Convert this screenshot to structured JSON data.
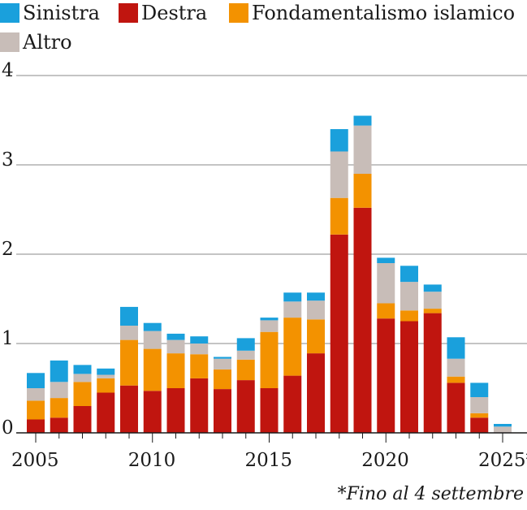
{
  "chart_data": {
    "type": "bar",
    "stacked": true,
    "categories": [
      "2005",
      "2006",
      "2007",
      "2008",
      "2009",
      "2010",
      "2011",
      "2012",
      "2013",
      "2014",
      "2015",
      "2016",
      "2017",
      "2018",
      "2019",
      "2020",
      "2021",
      "2022",
      "2023",
      "2024",
      "2025"
    ],
    "x_tick_labels": [
      "2005",
      "2010",
      "2015",
      "2020",
      "2025*"
    ],
    "y_ticks": [
      "0",
      "1",
      "2",
      "3",
      "4"
    ],
    "ylim": [
      0,
      4
    ],
    "grid": true,
    "legend_position": "top-left",
    "series": [
      {
        "name": "Destra",
        "color": "#c0150f",
        "values": [
          0.15,
          0.17,
          0.3,
          0.45,
          0.53,
          0.47,
          0.5,
          0.61,
          0.49,
          0.59,
          0.5,
          0.64,
          0.89,
          2.22,
          2.52,
          1.28,
          1.25,
          1.34,
          0.56,
          0.17,
          0.0
        ]
      },
      {
        "name": "Fondamentalismo islamico",
        "color": "#f39200",
        "values": [
          0.21,
          0.22,
          0.27,
          0.16,
          0.51,
          0.47,
          0.39,
          0.27,
          0.22,
          0.23,
          0.63,
          0.65,
          0.38,
          0.41,
          0.38,
          0.17,
          0.12,
          0.05,
          0.07,
          0.05,
          0.0
        ]
      },
      {
        "name": "Altro",
        "color": "#c8bdb8",
        "values": [
          0.14,
          0.18,
          0.09,
          0.04,
          0.16,
          0.2,
          0.15,
          0.12,
          0.12,
          0.1,
          0.13,
          0.18,
          0.21,
          0.52,
          0.54,
          0.45,
          0.32,
          0.19,
          0.2,
          0.18,
          0.07
        ]
      },
      {
        "name": "Sinistra",
        "color": "#1aa0dc",
        "values": [
          0.17,
          0.24,
          0.1,
          0.07,
          0.21,
          0.09,
          0.07,
          0.08,
          0.02,
          0.14,
          0.03,
          0.1,
          0.09,
          0.25,
          0.11,
          0.06,
          0.18,
          0.08,
          0.24,
          0.16,
          0.03
        ]
      }
    ],
    "legend": [
      {
        "label": "Sinistra",
        "color": "#1aa0dc"
      },
      {
        "label": "Destra",
        "color": "#c0150f"
      },
      {
        "label": "Fondamentalismo islamico",
        "color": "#f39200"
      },
      {
        "label": "Altro",
        "color": "#c8bdb8"
      }
    ],
    "footnote": "*Fino al 4 settembre"
  }
}
